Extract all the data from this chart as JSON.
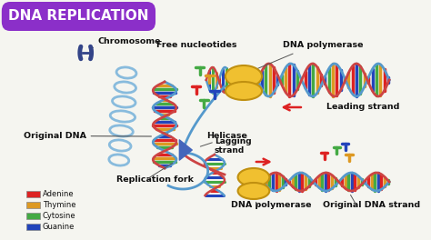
{
  "title": "DNA REPLICATION",
  "title_bg_color": "#8B2FC9",
  "title_text_color": "#FFFFFF",
  "bg_color": "#F5F5F0",
  "legend_items": [
    {
      "label": "Adenine",
      "color": "#DD2222"
    },
    {
      "label": "Thymine",
      "color": "#DD9922"
    },
    {
      "label": "Cytosine",
      "color": "#44AA44"
    },
    {
      "label": "Guanine",
      "color": "#2244BB"
    }
  ],
  "labels": {
    "chromosome": "Chromosome",
    "free_nucleotides": "Free nucleotides",
    "dna_polymerase_top": "DNA polymerase",
    "leading_strand": "Leading strand",
    "original_dna": "Original DNA",
    "helicase": "Helicase",
    "lagging_strand": "Lagging\nstrand",
    "replication_fork": "Replication fork",
    "dna_polymerase_bot": "DNA polymerase",
    "original_dna_strand": "Original DNA strand"
  },
  "dna_colors": [
    "#DD2222",
    "#DD9922",
    "#44AA44",
    "#2244BB"
  ],
  "strand_colors": [
    "#5599CC",
    "#CC4444"
  ],
  "poly_color": "#F0C030",
  "poly_edge": "#C09010",
  "helicase_color": "#4466BB",
  "arrow_red": "#DD2222",
  "chrom_color": "#334488"
}
